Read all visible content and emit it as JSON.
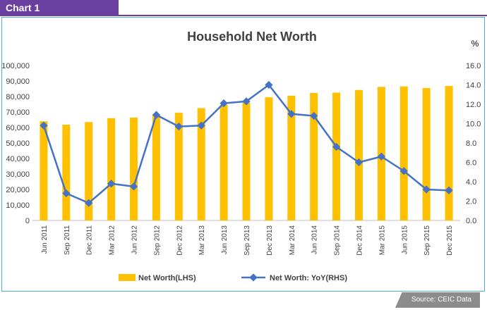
{
  "header": {
    "tag": "Chart 1"
  },
  "footer": {
    "source": "Source: CEIC Data"
  },
  "chart_data": {
    "type": "bar",
    "title": "Household Net Worth",
    "categories": [
      "Jun 2011",
      "Sep 2011",
      "Dec 2011",
      "Mar 2012",
      "Jun 2012",
      "Sep 2012",
      "Dec 2012",
      "Mar 2013",
      "Jun 2013",
      "Sep 2013",
      "Dec 2013",
      "Mar 2014",
      "Jun 2014",
      "Sep 2014",
      "Dec 2014",
      "Mar 2015",
      "Jun 2015",
      "Sep 2015",
      "Dec 2015"
    ],
    "series": [
      {
        "name": "Net Worth(LHS)",
        "type": "bar",
        "axis": "left",
        "color": "#ffc000",
        "values": [
          64000,
          61800,
          63500,
          66000,
          66400,
          68500,
          69500,
          72500,
          74500,
          76000,
          79500,
          80500,
          82300,
          82500,
          84200,
          86200,
          86500,
          85500,
          86800
        ]
      },
      {
        "name": "Net Worth: YoY(RHS)",
        "type": "line",
        "axis": "right",
        "color": "#4472c4",
        "values": [
          9.8,
          2.8,
          1.8,
          3.8,
          3.5,
          10.9,
          9.7,
          9.8,
          12.1,
          12.3,
          14.0,
          11.0,
          10.8,
          7.6,
          6.0,
          6.6,
          5.1,
          3.2,
          3.1
        ]
      }
    ],
    "left_axis": {
      "min": 0,
      "max": 100000,
      "step": 10000,
      "ticks": [
        "0",
        "10,000",
        "20,000",
        "30,000",
        "40,000",
        "50,000",
        "60,000",
        "70,000",
        "80,000",
        "90,000",
        "100,000"
      ]
    },
    "right_axis": {
      "label": "%",
      "min": 0,
      "max": 16,
      "step": 2,
      "ticks": [
        "0.0",
        "2.0",
        "4.0",
        "6.0",
        "8.0",
        "10.0",
        "12.0",
        "14.0",
        "16.0"
      ]
    },
    "legend_position": "bottom",
    "grid": false
  }
}
